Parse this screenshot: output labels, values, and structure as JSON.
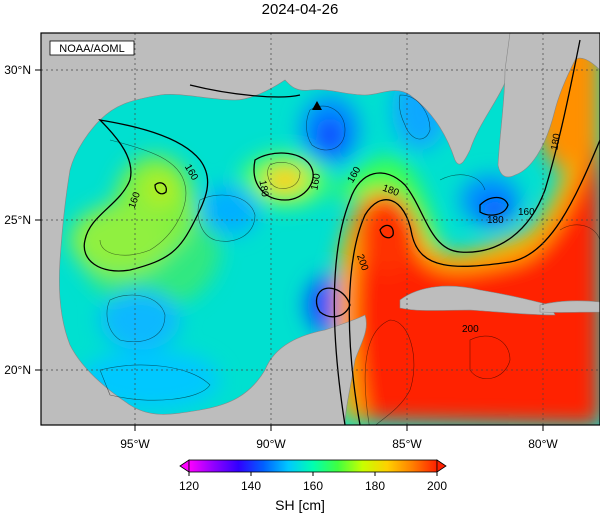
{
  "title": "2024-04-26",
  "credit": "NOAA/AOML",
  "axes": {
    "lon_ticks": [
      "95°W",
      "90°W",
      "85°W",
      "80°W"
    ],
    "lat_ticks": [
      "30°N",
      "25°N",
      "20°N"
    ],
    "lon_range": [
      -98,
      -78
    ],
    "lat_range": [
      18,
      31
    ]
  },
  "contour_labels": [
    "160",
    "160",
    "160",
    "180",
    "160",
    "180",
    "160",
    "180",
    "200",
    "200",
    "180"
  ],
  "colorbar": {
    "min": 120,
    "max": 200,
    "ticks": [
      "120",
      "140",
      "160",
      "180",
      "200"
    ],
    "label": "SH [cm]",
    "colormap": [
      "#ff00ff",
      "#9000ff",
      "#3000ff",
      "#0060ff",
      "#00c8ff",
      "#00ffb0",
      "#40ff40",
      "#c8ff00",
      "#ffd000",
      "#ff8000",
      "#ff2000"
    ]
  },
  "colors": {
    "land": "#bdbdbd",
    "frame": "#000000",
    "grid": "#444444"
  },
  "marker": "triangle-marker",
  "chart_data": {
    "type": "heatmap",
    "title": "2024-04-26",
    "variable": "SH [cm]",
    "vmin": 120,
    "vmax": 200,
    "xlabel": "",
    "ylabel": "",
    "region": "Gulf of Mexico",
    "contour_interval": 20,
    "features": [
      {
        "lon": -88.2,
        "lat": 28.0,
        "value": 140
      },
      {
        "lon": -89.7,
        "lat": 26.2,
        "value": 185
      },
      {
        "lon": -87.9,
        "lat": 21.9,
        "value": 138
      },
      {
        "lon": -82.0,
        "lat": 25.6,
        "value": 140
      },
      {
        "lon": -86.0,
        "lat": 24.5,
        "value": 210
      },
      {
        "lon": -93.9,
        "lat": 26.0,
        "value": 175
      },
      {
        "lon": -80.0,
        "lat": 22.5,
        "value": 205
      }
    ]
  }
}
